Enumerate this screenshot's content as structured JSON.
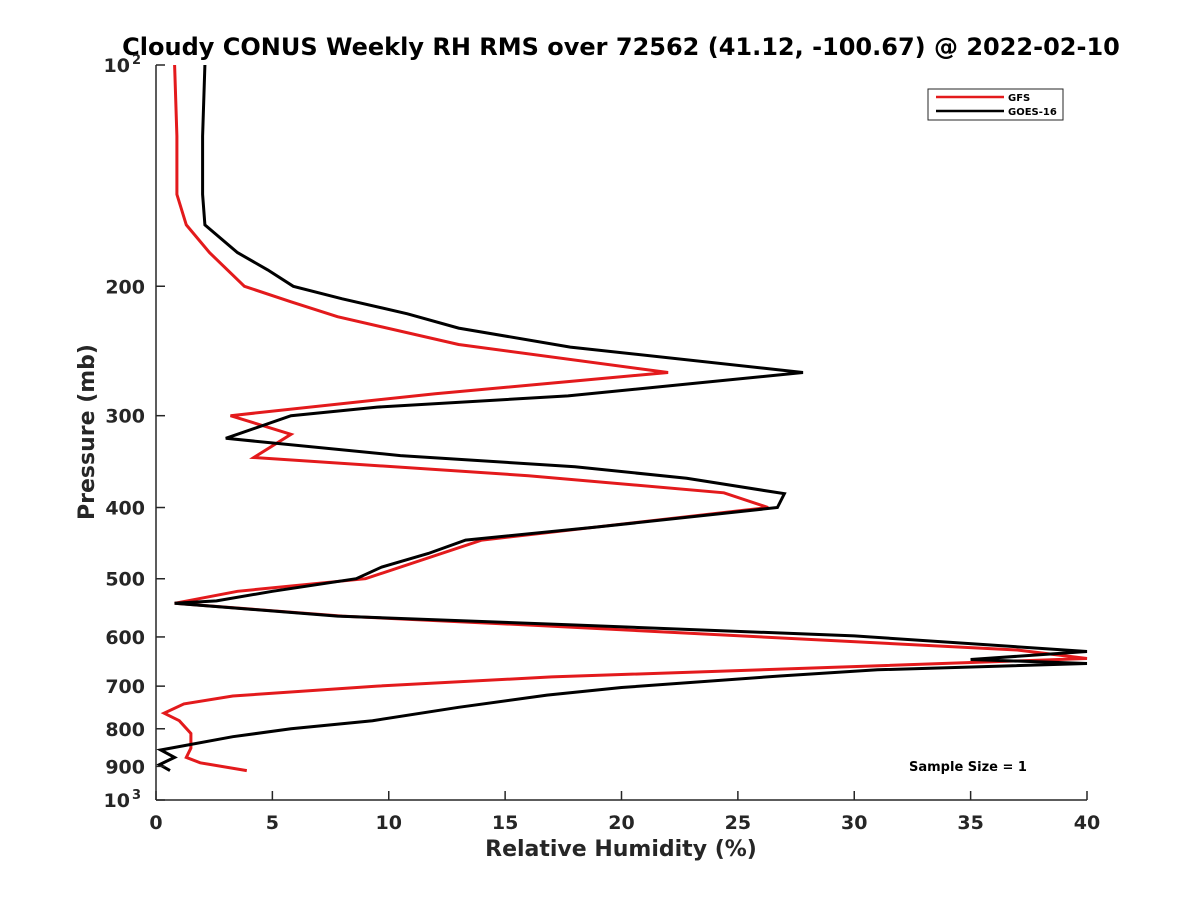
{
  "chart_data": {
    "type": "line",
    "title": "Cloudy CONUS Weekly RH RMS over 72562 (41.12, -100.67) @ 2022-02-10",
    "xlabel": "Relative Humidity (%)",
    "ylabel": "Pressure (mb)",
    "xlim": [
      0,
      40
    ],
    "ylim": [
      100,
      1000
    ],
    "y_scale": "log",
    "y_reversed": true,
    "x_ticks": [
      0,
      5,
      10,
      15,
      20,
      25,
      30,
      35,
      40
    ],
    "y_ticks": [
      {
        "value": 100,
        "label": "10",
        "sup": "2"
      },
      {
        "value": 200,
        "label": "200"
      },
      {
        "value": 300,
        "label": "300"
      },
      {
        "value": 400,
        "label": "400"
      },
      {
        "value": 500,
        "label": "500"
      },
      {
        "value": 600,
        "label": "600"
      },
      {
        "value": 700,
        "label": "700"
      },
      {
        "value": 800,
        "label": "800"
      },
      {
        "value": 900,
        "label": "900"
      },
      {
        "value": 1000,
        "label": "10",
        "sup": "3"
      }
    ],
    "grid": false,
    "legend_position": "top-right",
    "annotation": "Sample Size = 1",
    "series": [
      {
        "name": "GFS",
        "color": "#e31a1c",
        "points": [
          [
            0.8,
            100
          ],
          [
            0.9,
            125
          ],
          [
            0.9,
            150
          ],
          [
            1.3,
            165
          ],
          [
            2.3,
            180
          ],
          [
            3.8,
            200
          ],
          [
            5.8,
            210
          ],
          [
            7.8,
            220
          ],
          [
            13.0,
            240
          ],
          [
            22.0,
            262
          ],
          [
            12.0,
            280
          ],
          [
            3.2,
            300
          ],
          [
            5.8,
            318
          ],
          [
            4.2,
            342
          ],
          [
            16.0,
            362
          ],
          [
            24.4,
            382
          ],
          [
            26.3,
            400
          ],
          [
            14.0,
            443
          ],
          [
            9.0,
            500
          ],
          [
            3.5,
            520
          ],
          [
            0.8,
            540
          ],
          [
            8.0,
            562
          ],
          [
            16.0,
            578
          ],
          [
            37.0,
            625
          ],
          [
            40.0,
            642
          ],
          [
            29.0,
            660
          ],
          [
            17.0,
            680
          ],
          [
            9.5,
            700
          ],
          [
            3.3,
            722
          ],
          [
            1.2,
            740
          ],
          [
            0.35,
            762
          ],
          [
            1.0,
            780
          ],
          [
            1.5,
            812
          ],
          [
            1.5,
            850
          ],
          [
            1.3,
            875
          ],
          [
            1.9,
            890
          ],
          [
            3.9,
            912
          ]
        ]
      },
      {
        "name": "GOES-16",
        "color": "#000000",
        "points": [
          [
            2.1,
            100
          ],
          [
            2.0,
            125
          ],
          [
            2.0,
            150
          ],
          [
            2.1,
            165
          ],
          [
            3.5,
            180
          ],
          [
            4.8,
            190
          ],
          [
            5.9,
            200
          ],
          [
            8.0,
            208
          ],
          [
            10.8,
            218
          ],
          [
            13.0,
            228
          ],
          [
            17.8,
            242
          ],
          [
            27.8,
            262
          ],
          [
            17.7,
            282
          ],
          [
            9.5,
            292
          ],
          [
            5.8,
            300
          ],
          [
            3.0,
            322
          ],
          [
            10.5,
            340
          ],
          [
            18.0,
            352
          ],
          [
            22.8,
            365
          ],
          [
            27.0,
            383
          ],
          [
            26.7,
            400
          ],
          [
            19.0,
            425
          ],
          [
            13.3,
            443
          ],
          [
            11.7,
            462
          ],
          [
            9.7,
            482
          ],
          [
            8.6,
            500
          ],
          [
            5.0,
            520
          ],
          [
            2.6,
            536
          ],
          [
            0.8,
            540
          ],
          [
            7.8,
            562
          ],
          [
            18.0,
            578
          ],
          [
            30.0,
            598
          ],
          [
            40.0,
            628
          ],
          [
            35.0,
            644
          ],
          [
            40.0,
            652
          ],
          [
            31.0,
            665
          ],
          [
            26.8,
            678
          ],
          [
            20.0,
            703
          ],
          [
            16.8,
            720
          ],
          [
            13.0,
            748
          ],
          [
            9.3,
            780
          ],
          [
            5.8,
            800
          ],
          [
            3.3,
            820
          ],
          [
            0.2,
            855
          ],
          [
            0.8,
            875
          ],
          [
            0.15,
            895
          ],
          [
            0.6,
            912
          ]
        ]
      }
    ]
  }
}
